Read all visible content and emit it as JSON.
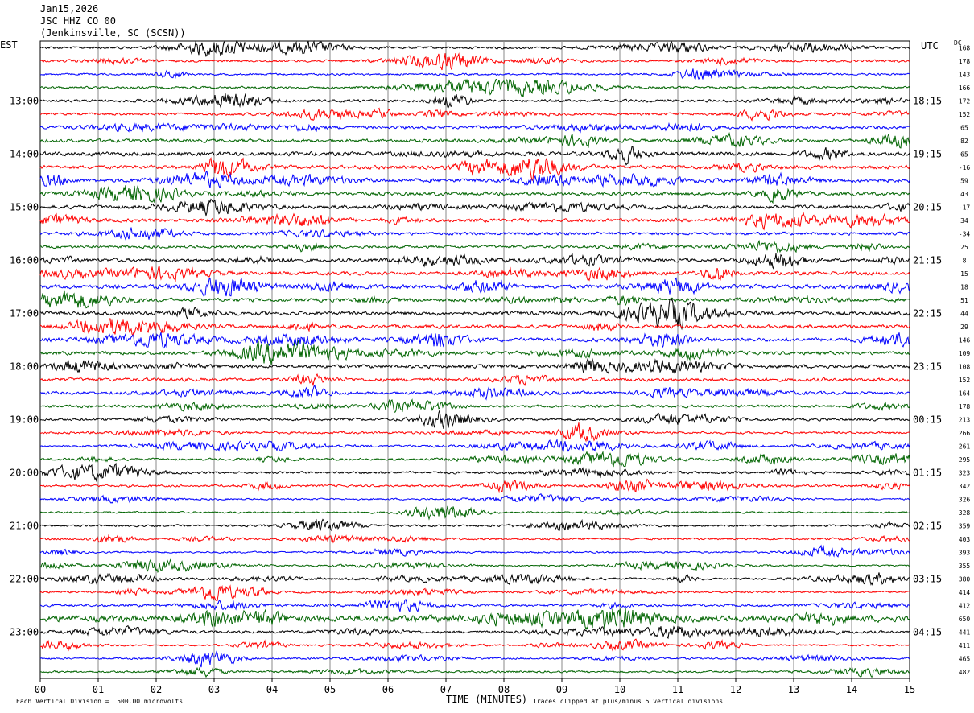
{
  "header": {
    "date": "Jan15,2026",
    "station": "JSC HHZ CO 00",
    "location": "(Jenkinsville, SC (SCSN))"
  },
  "left_tz": "EST",
  "right_tz": "UTC",
  "dc_label": "DC",
  "footer": {
    "scale_note": "Each Vertical Division =  500.00 microvolts",
    "clip_note": "Traces clipped at plus/minus 5 vertical divisions",
    "x_title": "TIME (MINUTES)"
  },
  "chart_data": {
    "type": "line",
    "title": "JSC HHZ CO 00",
    "xlabel": "TIME (MINUTES)",
    "xlim": [
      0,
      15
    ],
    "x_ticks": [
      "00",
      "01",
      "02",
      "03",
      "04",
      "05",
      "06",
      "07",
      "08",
      "09",
      "10",
      "11",
      "12",
      "13",
      "14",
      "15"
    ],
    "trace_colors": [
      "#000000",
      "#ff0000",
      "#0000ff",
      "#006400"
    ],
    "left_hour_labels": [
      "13:00",
      "14:00",
      "15:00",
      "16:00",
      "17:00",
      "18:00",
      "19:00",
      "20:00",
      "21:00",
      "22:00",
      "23:00"
    ],
    "right_hour_labels": [
      "18:15",
      "19:15",
      "20:15",
      "21:15",
      "22:15",
      "23:15",
      "00:15",
      "01:15",
      "02:15",
      "03:15",
      "04:15"
    ],
    "dc_offsets": [
      "168",
      "178",
      "143",
      "166",
      "172",
      "152",
      "65",
      "82",
      "65",
      "-16",
      "59",
      "43",
      "-17",
      "34",
      "-34",
      "25",
      "8",
      "15",
      "18",
      "51",
      "44",
      "29",
      "146",
      "109",
      "108",
      "152",
      "164",
      "178",
      "213",
      "266",
      "261",
      "295",
      "323",
      "342",
      "326",
      "328",
      "359",
      "403",
      "393",
      "355",
      "380",
      "414",
      "412",
      "650",
      "441",
      "411",
      "465",
      "482"
    ],
    "trace_activity": [
      1.0,
      0.9,
      0.8,
      0.9,
      1.1,
      1.0,
      1.2,
      1.3,
      1.6,
      1.5,
      1.5,
      1.4,
      1.5,
      1.4,
      1.2,
      1.1,
      1.3,
      1.4,
      1.6,
      1.4,
      1.5,
      1.4,
      1.5,
      1.4,
      1.4,
      1.3,
      1.2,
      1.1,
      1.0,
      0.9,
      0.9,
      0.9,
      1.0,
      0.9,
      0.7,
      0.7,
      0.8,
      0.8,
      0.7,
      0.7,
      0.8,
      0.8,
      1.0,
      2.6,
      1.0,
      0.7,
      0.7,
      0.8
    ],
    "scale_microvolts_per_division": 500.0,
    "clip_divisions": 5
  }
}
